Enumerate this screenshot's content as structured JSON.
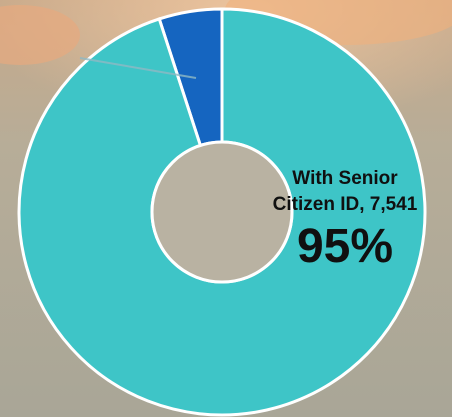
{
  "chart_data": {
    "type": "pie",
    "donut": true,
    "legend": "none",
    "slices": [
      {
        "label": "With Senior Citizen ID",
        "value": 7541,
        "percent": 95,
        "color": "#3ec5c7"
      },
      {
        "label": "",
        "value": 397,
        "percent": 5,
        "color": "#1565c0"
      }
    ],
    "annotations": {
      "main_label_line1": "With Senior",
      "main_label_line2": "Citizen ID, 7,541",
      "main_percent": "95%"
    }
  }
}
